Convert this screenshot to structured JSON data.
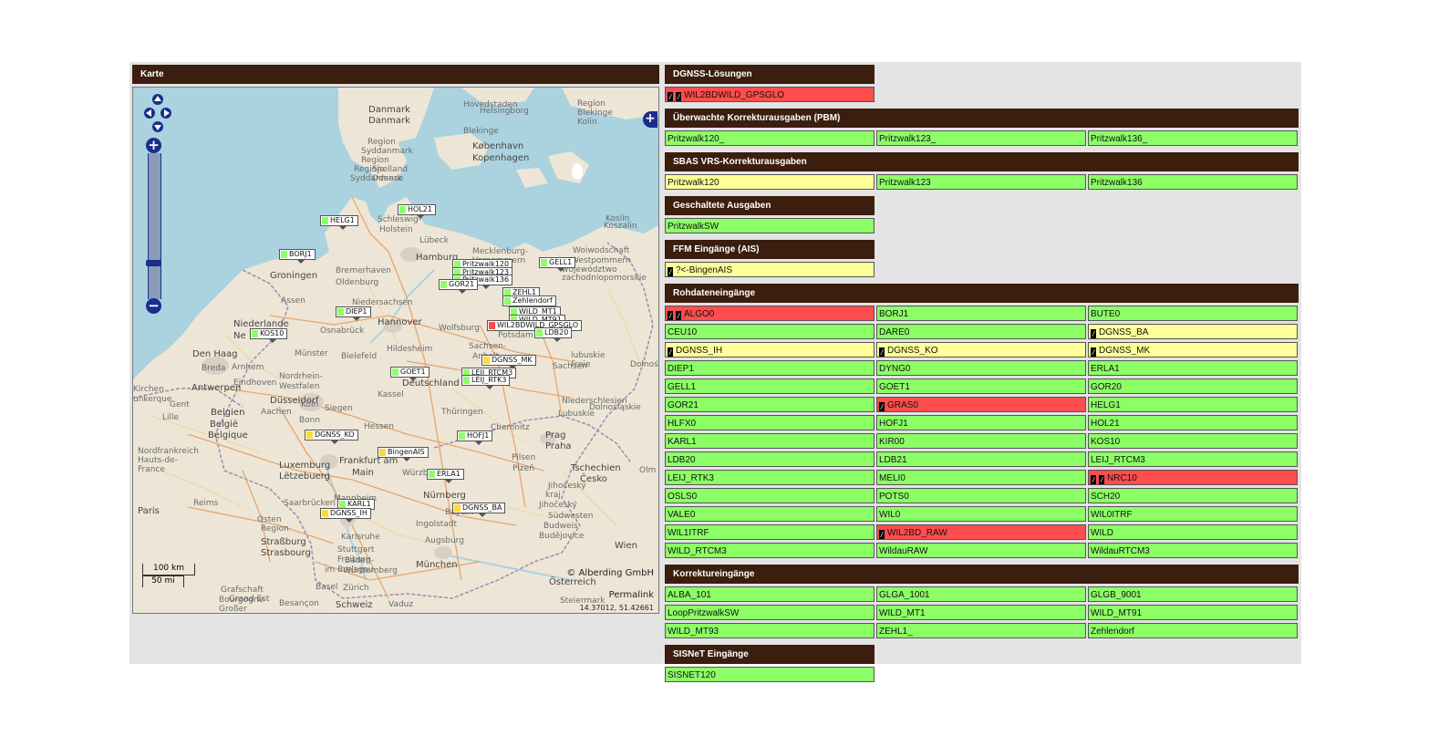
{
  "map": {
    "header": "Karte",
    "attribution": "© Alberding GmbH",
    "permalink": "Permalink",
    "coords": "14.37012, 51.42661",
    "scale_km": "100 km",
    "scale_mi": "50 mi",
    "places": [
      "Danmark",
      "Danmark",
      "Helsingborg",
      "Region",
      "Syddanmark",
      "Region",
      "Sjælland",
      "Odense",
      "Region",
      "Syddanmark",
      "København",
      "Kopenhagen",
      "Schleswig-",
      "Holstein",
      "Lübeck",
      "Hamburg",
      "Bremerhaven",
      "Groningen",
      "Oldenburg",
      "Mecklenburg-",
      "Vorpommern",
      "Niedersachsen",
      "Hannover",
      "Wolfsburg",
      "Potsdam",
      "Assen",
      "Niederlande",
      "Ne",
      "Osnabrück",
      "Bielefeld",
      "Münster",
      "Den Haag",
      "Arnhem",
      "Breda",
      "Eindhoven",
      "Antwerpen",
      "Nordrhein-",
      "Westfalen",
      "Düsseldorf",
      "Belgien",
      "België",
      "Belgique",
      "Aachen",
      "Köln",
      "Bonn",
      "Siegen",
      "Kassel",
      "Deutschland",
      "Hessen",
      "Thüringen",
      "Sachsen-",
      "Anhalt",
      "Hildesheim",
      "Lille",
      "Luxemburg",
      "Lëtzebuerg",
      "Frankfurt am",
      "Main",
      "Würzburg",
      "Nürnberg",
      "Bayern",
      "Reims",
      "Paris",
      "Saarbrücken",
      "Mannheim",
      "Straßburg",
      "Strasbourg",
      "Karlsruhe",
      "Stuttgart",
      "Baden-",
      "Württemberg",
      "Ingolstadt",
      "Augsburg",
      "München",
      "Freiburg",
      "im Breisgau",
      "Basel",
      "Zürich",
      "Schweiz",
      "Vaduz",
      "Besançon",
      "Grand Est",
      "Chemnitz",
      "Prag",
      "Praha",
      "Pilsen",
      "Plzeň",
      "Tschechien",
      "Česko",
      "Budweis",
      "Budějovice",
      "Jihočeský",
      "kraj",
      "Wien",
      "Österreich",
      "Steiermark",
      "Koslin",
      "Koszalin",
      "Woiwodschaft",
      "Westpommern",
      "Dolnośląskie",
      "Olm",
      "Jihočeský",
      "Südwesten",
      "Nordfrankreich",
      "Hauts-de-",
      "France",
      "Kirchen",
      "unkerque",
      "Gent",
      "Sachsen",
      "Niederschlesien",
      "Lubuskie",
      "województwo",
      "zachodniopomorskie",
      "lubuskie",
      "Dolnośląskie",
      "Freie",
      "Grafschaft",
      "Bourgogne",
      "Großer",
      "Osten",
      "Region",
      "Hovedstaden",
      "Blekinge",
      "Region",
      "Blekinge",
      "Kolin"
    ],
    "markers": [
      {
        "label": "HELG1",
        "status": "ok"
      },
      {
        "label": "HOL21",
        "status": "ok"
      },
      {
        "label": "BORJ1",
        "status": "ok"
      },
      {
        "label": "Pritzwalk120",
        "status": "ok"
      },
      {
        "label": "Pritzwalk123",
        "status": "ok"
      },
      {
        "label": "Pritzwalk136",
        "status": "ok"
      },
      {
        "label": "GOR21",
        "status": "ok"
      },
      {
        "label": "GELL1",
        "status": "ok"
      },
      {
        "label": "ZEHL1",
        "status": "ok"
      },
      {
        "label": "Zehlendorf",
        "status": "ok"
      },
      {
        "label": "WILD_MT1",
        "status": "ok"
      },
      {
        "label": "WILD_MT91",
        "status": "ok"
      },
      {
        "label": "WIL2BDWILD_GPSGLO",
        "status": "err"
      },
      {
        "label": "LDB20",
        "status": "ok"
      },
      {
        "label": "DIEP1",
        "status": "ok"
      },
      {
        "label": "KOS10",
        "status": "ok"
      },
      {
        "label": "DGNSS_MK",
        "status": "warn"
      },
      {
        "label": "GOET1",
        "status": "ok"
      },
      {
        "label": "LEIJ_RTCM3",
        "status": "ok"
      },
      {
        "label": "LEIJ_RTK3",
        "status": "ok"
      },
      {
        "label": "DGNSS_KO",
        "status": "warn"
      },
      {
        "label": "HOFJ1",
        "status": "ok"
      },
      {
        "label": "BingenAIS",
        "status": "warn"
      },
      {
        "label": "ERLA1",
        "status": "ok"
      },
      {
        "label": "KARL1",
        "status": "ok"
      },
      {
        "label": "DGNSS_IH",
        "status": "warn"
      },
      {
        "label": "DGNSS_BA",
        "status": "warn"
      }
    ]
  },
  "sections": [
    {
      "title": "DGNSS-Lösungen",
      "cols": 1,
      "items": [
        {
          "label": "WIL2BDWILD_GPSGLO",
          "status": "err",
          "flags": 2
        }
      ]
    },
    {
      "title": "Überwachte Korrekturausgaben (PBM)",
      "cols": 3,
      "items": [
        {
          "label": "Pritzwalk120_",
          "status": "ok",
          "flags": 0
        },
        {
          "label": "Pritzwalk123_",
          "status": "ok",
          "flags": 0
        },
        {
          "label": "Pritzwalk136_",
          "status": "ok",
          "flags": 0
        }
      ]
    },
    {
      "title": "SBAS VRS-Korrekturausgaben",
      "cols": 3,
      "items": [
        {
          "label": "Pritzwalk120",
          "status": "warn",
          "flags": 0
        },
        {
          "label": "Pritzwalk123",
          "status": "ok",
          "flags": 0
        },
        {
          "label": "Pritzwalk136",
          "status": "ok",
          "flags": 0
        }
      ]
    },
    {
      "title": "Geschaltete Ausgaben",
      "cols": 1,
      "items": [
        {
          "label": "PritzwalkSW",
          "status": "ok",
          "flags": 0
        }
      ]
    },
    {
      "title": "FFM Eingänge (AIS)",
      "cols": 1,
      "items": [
        {
          "label": "?<-BingenAIS",
          "status": "warn",
          "flags": 1
        }
      ]
    },
    {
      "title": "Rohdateneingänge",
      "cols": 3,
      "items": [
        {
          "label": "ALGO0",
          "status": "err",
          "flags": 2
        },
        {
          "label": "BORJ1",
          "status": "ok",
          "flags": 0
        },
        {
          "label": "BUTE0",
          "status": "ok",
          "flags": 0
        },
        {
          "label": "CEU10",
          "status": "ok",
          "flags": 0
        },
        {
          "label": "DARE0",
          "status": "ok",
          "flags": 0
        },
        {
          "label": "DGNSS_BA",
          "status": "warn",
          "flags": 1
        },
        {
          "label": "DGNSS_IH",
          "status": "warn",
          "flags": 1
        },
        {
          "label": "DGNSS_KO",
          "status": "warn",
          "flags": 1
        },
        {
          "label": "DGNSS_MK",
          "status": "warn",
          "flags": 1
        },
        {
          "label": "DIEP1",
          "status": "ok",
          "flags": 0
        },
        {
          "label": "DYNG0",
          "status": "ok",
          "flags": 0
        },
        {
          "label": "ERLA1",
          "status": "ok",
          "flags": 0
        },
        {
          "label": "GELL1",
          "status": "ok",
          "flags": 0
        },
        {
          "label": "GOET1",
          "status": "ok",
          "flags": 0
        },
        {
          "label": "GOR20",
          "status": "ok",
          "flags": 0
        },
        {
          "label": "GOR21",
          "status": "ok",
          "flags": 0
        },
        {
          "label": "GRAS0",
          "status": "err",
          "flags": 1
        },
        {
          "label": "HELG1",
          "status": "ok",
          "flags": 0
        },
        {
          "label": "HLFX0",
          "status": "ok",
          "flags": 0
        },
        {
          "label": "HOFJ1",
          "status": "ok",
          "flags": 0
        },
        {
          "label": "HOL21",
          "status": "ok",
          "flags": 0
        },
        {
          "label": "KARL1",
          "status": "ok",
          "flags": 0
        },
        {
          "label": "KIR00",
          "status": "ok",
          "flags": 0
        },
        {
          "label": "KOS10",
          "status": "ok",
          "flags": 0
        },
        {
          "label": "LDB20",
          "status": "ok",
          "flags": 0
        },
        {
          "label": "LDB21",
          "status": "ok",
          "flags": 0
        },
        {
          "label": "LEIJ_RTCM3",
          "status": "ok",
          "flags": 0
        },
        {
          "label": "LEIJ_RTK3",
          "status": "ok",
          "flags": 0
        },
        {
          "label": "MELI0",
          "status": "ok",
          "flags": 0
        },
        {
          "label": "NRC10",
          "status": "err",
          "flags": 2
        },
        {
          "label": "OSLS0",
          "status": "ok",
          "flags": 0
        },
        {
          "label": "POTS0",
          "status": "ok",
          "flags": 0
        },
        {
          "label": "SCH20",
          "status": "ok",
          "flags": 0
        },
        {
          "label": "VALE0",
          "status": "ok",
          "flags": 0
        },
        {
          "label": "WIL0",
          "status": "ok",
          "flags": 0
        },
        {
          "label": "WIL0ITRF",
          "status": "ok",
          "flags": 0
        },
        {
          "label": "WIL1ITRF",
          "status": "ok",
          "flags": 0
        },
        {
          "label": "WIL2BD_RAW",
          "status": "err",
          "flags": 1
        },
        {
          "label": "WILD",
          "status": "ok",
          "flags": 0
        },
        {
          "label": "WILD_RTCM3",
          "status": "ok",
          "flags": 0
        },
        {
          "label": "WildauRAW",
          "status": "ok",
          "flags": 0
        },
        {
          "label": "WildauRTCM3",
          "status": "ok",
          "flags": 0
        }
      ]
    },
    {
      "title": "Korrektureingänge",
      "cols": 3,
      "items": [
        {
          "label": "ALBA_101",
          "status": "ok",
          "flags": 0
        },
        {
          "label": "GLGA_1001",
          "status": "ok",
          "flags": 0
        },
        {
          "label": "GLGB_9001",
          "status": "ok",
          "flags": 0
        },
        {
          "label": "LoopPritzwalkSW",
          "status": "ok",
          "flags": 0
        },
        {
          "label": "WILD_MT1",
          "status": "ok",
          "flags": 0
        },
        {
          "label": "WILD_MT91",
          "status": "ok",
          "flags": 0
        },
        {
          "label": "WILD_MT93",
          "status": "ok",
          "flags": 0
        },
        {
          "label": "ZEHL1_",
          "status": "ok",
          "flags": 0
        },
        {
          "label": "Zehlendorf",
          "status": "ok",
          "flags": 0
        }
      ]
    },
    {
      "title": "SISNeT Eingänge",
      "cols": 1,
      "items": [
        {
          "label": "SISNET120",
          "status": "ok",
          "flags": 0
        }
      ]
    }
  ],
  "colors": {
    "header": "#3b1e0e",
    "ok": "#8cff66",
    "warn": "#ffff99",
    "err": "#ff4d4d",
    "sea": "#aad3df",
    "land": "#ede6d6"
  },
  "icons": {
    "pan": "pan-arrows-icon",
    "zoom_in": "plus-icon",
    "zoom_out": "minus-icon",
    "layers": "layer-switcher-icon",
    "flag": "flag-icon"
  }
}
